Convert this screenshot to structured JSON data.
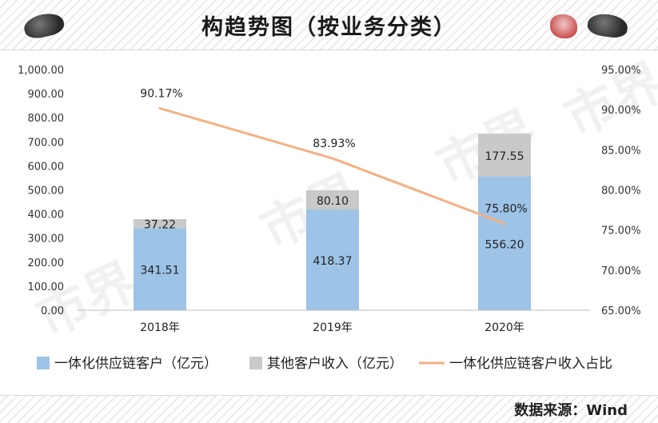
{
  "header": {
    "title": "构趋势图（按业务分类）"
  },
  "footer": {
    "source": "数据来源：Wind"
  },
  "watermark": "市界",
  "colors": {
    "series1": "#9dc3e6",
    "series2": "#c9c9c9",
    "line": "#f4b183"
  },
  "chart_data": {
    "type": "bar",
    "categories": [
      "2018年",
      "2019年",
      "2020年"
    ],
    "series": [
      {
        "name": "一体化供应链客户（亿元）",
        "kind": "stacked-bar",
        "values": [
          341.51,
          418.37,
          556.2
        ],
        "labels": [
          "341.51",
          "418.37",
          "556.20"
        ]
      },
      {
        "name": "其他客户收入（亿元）",
        "kind": "stacked-bar",
        "values": [
          37.22,
          80.1,
          177.55
        ],
        "labels": [
          "37.22",
          "80.10",
          "177.55"
        ]
      },
      {
        "name": "一体化供应链客户收入占比",
        "kind": "line",
        "axis": "right",
        "values": [
          90.17,
          83.93,
          75.8
        ],
        "labels": [
          "90.17%",
          "83.93%",
          "75.80%"
        ]
      }
    ],
    "ylim": [
      0,
      1000
    ],
    "y_ticks": [
      "0.00",
      "100.00",
      "200.00",
      "300.00",
      "400.00",
      "500.00",
      "600.00",
      "700.00",
      "800.00",
      "900.00",
      "1,000.00"
    ],
    "y2lim": [
      65,
      95
    ],
    "y2_ticks": [
      "65.00%",
      "70.00%",
      "75.00%",
      "80.00%",
      "85.00%",
      "90.00%",
      "95.00%"
    ],
    "grid": false,
    "legend": "bottom"
  }
}
